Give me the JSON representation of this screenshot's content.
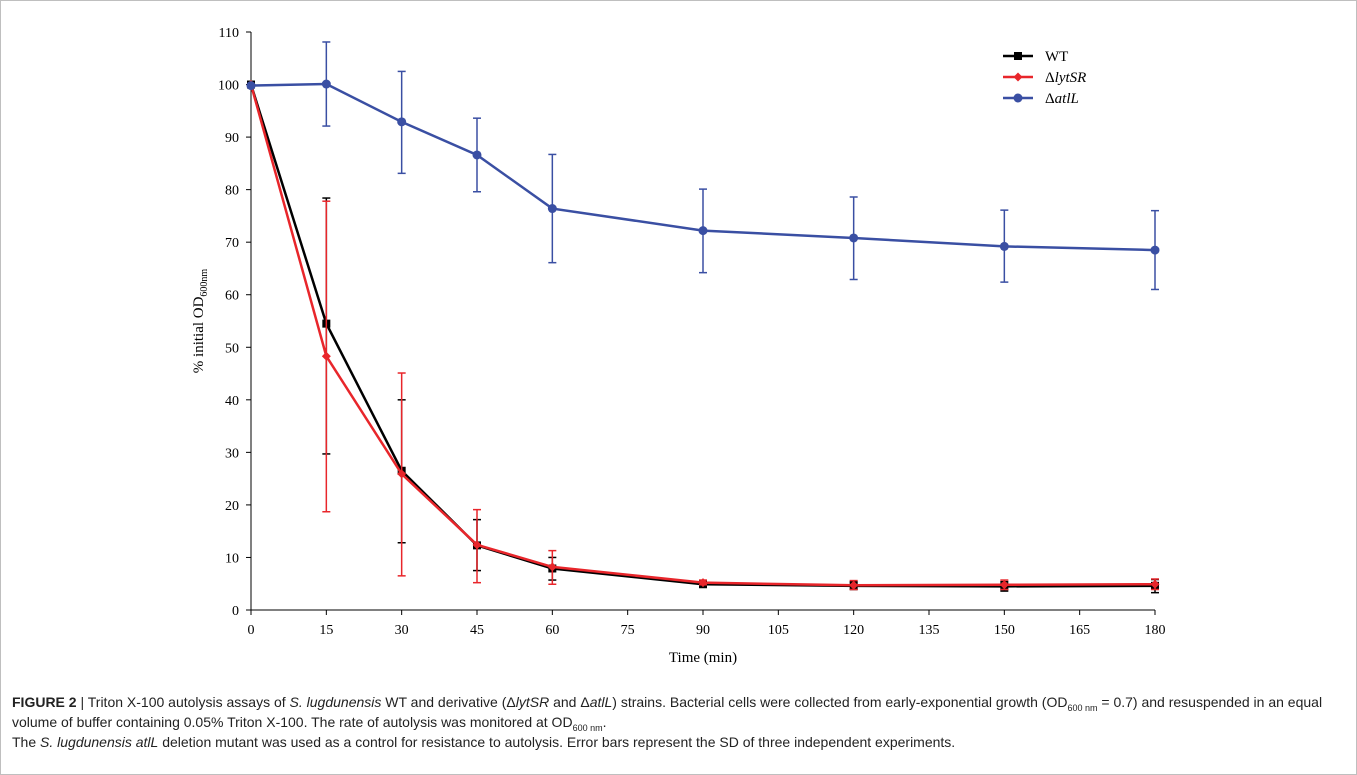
{
  "chart_data": {
    "type": "line",
    "x": [
      0,
      15,
      30,
      45,
      60,
      90,
      120,
      150,
      180
    ],
    "x_ticks": [
      0,
      15,
      30,
      45,
      60,
      75,
      90,
      105,
      120,
      135,
      150,
      165,
      180
    ],
    "xlim": [
      0,
      180
    ],
    "ylim": [
      0,
      110
    ],
    "y_ticks": [
      0,
      10,
      20,
      30,
      40,
      50,
      60,
      70,
      80,
      90,
      100,
      110
    ],
    "xlabel": "Time (min)",
    "ylabel_main": "% initial OD",
    "ylabel_sub": "600nm",
    "grid": false,
    "legend_position": "top-right",
    "series": [
      {
        "name": "WT",
        "name_prefix": "",
        "name_italic": "",
        "color": "#000000",
        "marker": "square",
        "values": [
          100,
          54.5,
          26.5,
          12.3,
          7.9,
          4.9,
          4.6,
          4.5,
          4.6
        ],
        "err_low": [
          100,
          29.7,
          12.8,
          7.5,
          5.7,
          4.4,
          3.9,
          3.6,
          3.3
        ],
        "err_high": [
          100,
          78.4,
          40.0,
          17.2,
          10.0,
          5.4,
          5.4,
          5.4,
          5.8
        ]
      },
      {
        "name": "ΔlytSR",
        "name_prefix": "Δ",
        "name_italic": "lytSR",
        "color": "#e8262b",
        "marker": "diamond",
        "values": [
          100,
          48.3,
          25.9,
          12.4,
          8.2,
          5.2,
          4.7,
          4.8,
          4.9
        ],
        "err_low": [
          100,
          18.7,
          6.5,
          5.2,
          4.9,
          4.8,
          3.9,
          3.9,
          3.9
        ],
        "err_high": [
          100,
          77.8,
          45.1,
          19.1,
          11.3,
          5.7,
          5.6,
          5.7,
          5.9
        ]
      },
      {
        "name": "ΔatlL",
        "name_prefix": "Δ",
        "name_italic": "atlL",
        "color": "#3a4fa3",
        "marker": "circle",
        "values": [
          99.8,
          100.1,
          92.9,
          86.6,
          76.4,
          72.2,
          70.8,
          69.2,
          68.5
        ],
        "err_low": [
          99.8,
          92.1,
          83.1,
          79.6,
          66.1,
          64.2,
          62.9,
          62.4,
          61.0
        ],
        "err_high": [
          99.8,
          108.1,
          102.5,
          93.6,
          86.7,
          80.1,
          78.6,
          76.1,
          76.0
        ]
      }
    ]
  },
  "caption": {
    "label": "FIGURE 2",
    "separator": " | ",
    "t1": "Triton X-100 autolysis assays of ",
    "t1_it": "S. lugdunensis",
    "t2": " WT and derivative (Δ",
    "t2_it": "lytSR",
    "t3": " and Δ",
    "t3_it": "atlL",
    "t4": ") strains. Bacterial cells were collected from early-exponential growth (OD",
    "t4_sub": "600 nm",
    "t5": " = 0.7) and resuspended in an equal volume of buffer containing 0.05% Triton X-100. The rate of autolysis was monitored at OD",
    "t5_sub": "600 nm",
    "t6": ".",
    "t7": "The ",
    "t7_it": "S. lugdunensis atlL",
    "t8": " deletion mutant was used as a control for resistance to autolysis. Error bars represent the SD of three independent experiments."
  }
}
